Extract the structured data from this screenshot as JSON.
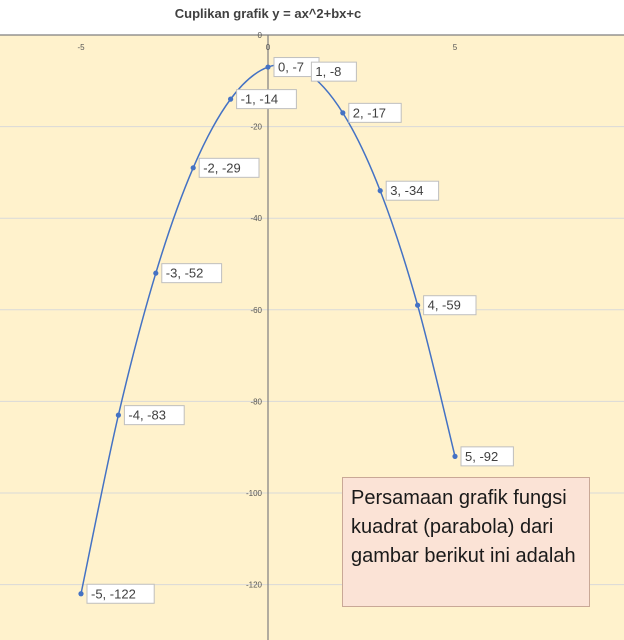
{
  "chart_data": {
    "type": "scatter",
    "title": "Cuplikan grafik y = ax^2+bx+c",
    "xlabel": "",
    "ylabel": "",
    "xlim": [
      -5,
      6
    ],
    "ylim": [
      -130,
      0
    ],
    "x_ticks": [
      -5,
      0,
      5
    ],
    "y_ticks": [
      0,
      -20,
      -40,
      -60,
      -80,
      -100,
      -120
    ],
    "grid": "horizontal",
    "legend": "none",
    "smooth_line": true,
    "colors": {
      "plot_background": "#fff2cc",
      "line": "#4472c4",
      "gridline": "#d9d9d9",
      "axis": "#7f7f7f"
    },
    "series": [
      {
        "x": [
          -5,
          -4,
          -3,
          -2,
          -1,
          0,
          1,
          2,
          3,
          4,
          5
        ],
        "y": [
          -122,
          -83,
          -52,
          -29,
          -14,
          -7,
          -8,
          -17,
          -34,
          -59,
          -92
        ],
        "labels": [
          "-5, -122",
          "-4, -83",
          "-3, -52",
          "-2, -29",
          "-1, -14",
          "0, -7",
          "1, -8",
          "2, -17",
          "3, -34",
          "4, -59",
          "5, -92"
        ]
      }
    ]
  },
  "question": {
    "text": "Persamaan grafik fungsi kuadrat (parabola) dari gambar berikut ini adalah",
    "background": "#fbe3d6"
  }
}
